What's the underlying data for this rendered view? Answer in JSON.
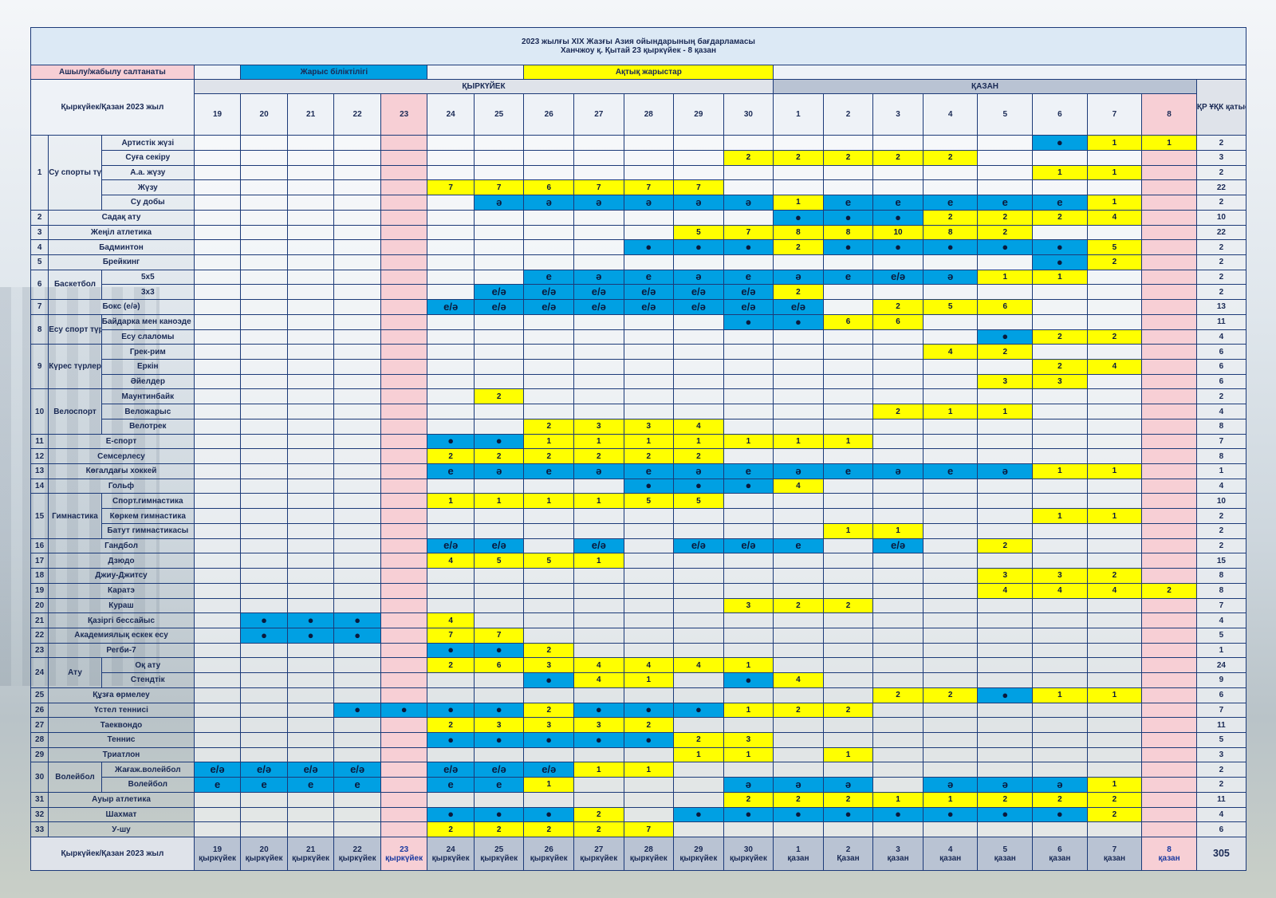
{
  "title_line1": "2023 жылғы XIX Жазғы Азия ойындарының бағдарламасы",
  "title_line2": "Ханчжоу қ. Қытай 23 қыркүйек - 8 қазан",
  "legend": {
    "ceremony": "Ашылу/жабылу салтанаты",
    "qualification": "Жарыс біліктілігі",
    "finals": "Ақтық жарыстар"
  },
  "months": {
    "sep": "ҚЫРКҮЙЕК",
    "oct": "ҚАЗАН"
  },
  "header_label": "Қыркүйек/Қазан 2023 жыл",
  "krq_header": "ҚР ҰҚК қатысу жоспары",
  "days": [
    "19",
    "20",
    "21",
    "22",
    "23",
    "24",
    "25",
    "26",
    "27",
    "28",
    "29",
    "30",
    "1",
    "2",
    "3",
    "4",
    "5",
    "6",
    "7",
    "8"
  ],
  "colors": {
    "qualification": "#00a0e3",
    "finals": "#ffff00",
    "ceremony": "#f7cfd5",
    "border": "#1c3a78",
    "month_text": "#e0101a"
  },
  "rows": [
    {
      "num": "1",
      "group": "Су спорты түрлері",
      "sub": "Артистік жүзі",
      "cells": {
        "17": "b:●",
        "18": "y:1",
        "19": "y:1"
      },
      "total": "2"
    },
    {
      "sub": "Суға секіру",
      "cells": {
        "11": "y:2",
        "12": "y:2",
        "13": "y:2",
        "14": "y:2",
        "15": "y:2"
      },
      "total": "3"
    },
    {
      "sub": "А.а. жүзу",
      "cells": {
        "17": "y:1",
        "18": "y:1"
      },
      "total": "2"
    },
    {
      "sub": "Жүзу",
      "cells": {
        "5": "y:7",
        "6": "y:7",
        "7": "y:6",
        "8": "y:7",
        "9": "y:7",
        "10": "y:7"
      },
      "total": "22"
    },
    {
      "sub": "Су добы",
      "cells": {
        "6": "b:ә",
        "7": "b:ә",
        "8": "b:ә",
        "9": "b:ә",
        "10": "b:ә",
        "11": "b:ә",
        "12": "y:1",
        "13": "b:е",
        "14": "b:е",
        "15": "b:е",
        "16": "b:е",
        "17": "b:е",
        "18": "y:1"
      },
      "total": "2"
    },
    {
      "num": "2",
      "name": "Садақ ату",
      "cells": {
        "12": "b:●",
        "13": "b:●",
        "14": "b:●",
        "15": "y:2",
        "16": "y:2",
        "17": "y:2",
        "18": "y:4"
      },
      "total": "10"
    },
    {
      "num": "3",
      "name": "Жеңіл атлетика",
      "cells": {
        "10": "y:5",
        "11": "y:7",
        "12": "y:8",
        "13": "y:8",
        "14": "y:10",
        "15": "y:8",
        "16": "y:2"
      },
      "total": "22"
    },
    {
      "num": "4",
      "name": "Бадминтон",
      "cells": {
        "9": "b:●",
        "10": "b:●",
        "11": "b:●",
        "12": "y:2",
        "13": "b:●",
        "14": "b:●",
        "15": "b:●",
        "16": "b:●",
        "17": "b:●",
        "18": "y:5"
      },
      "total": "2"
    },
    {
      "num": "5",
      "name": "Брейкинг",
      "cells": {
        "17": "b:●",
        "18": "y:2"
      },
      "total": "2"
    },
    {
      "num": "6",
      "group": "Баскетбол",
      "sub": "5х5",
      "cells": {
        "7": "b:е",
        "8": "b:ә",
        "9": "b:е",
        "10": "b:ә",
        "11": "b:е",
        "12": "b:ә",
        "13": "b:е",
        "14": "b:е/ә",
        "15": "b:ә",
        "16": "y:1",
        "17": "y:1"
      },
      "total": "2"
    },
    {
      "sub": "3х3",
      "cells": {
        "6": "b:е/ә",
        "7": "b:е/ә",
        "8": "b:е/ә",
        "9": "b:е/ә",
        "10": "b:е/ә",
        "11": "b:е/ә",
        "12": "y:2"
      },
      "total": "2"
    },
    {
      "num": "7",
      "name": "Бокс (е/ә)",
      "cells": {
        "5": "b:е/ә",
        "6": "b:е/ә",
        "7": "b:е/ә",
        "8": "b:е/ә",
        "9": "b:е/ә",
        "10": "b:е/ә",
        "11": "b:е/ә",
        "12": "b:е/ә",
        "14": "y:2",
        "15": "y:5",
        "16": "y:6"
      },
      "total": "13"
    },
    {
      "num": "8",
      "group": "Есу спорт түрлері",
      "sub": "Байдарка мен каноэде есу",
      "cells": {
        "11": "b:●",
        "12": "b:●",
        "13": "y:6",
        "14": "y:6"
      },
      "total": "11"
    },
    {
      "sub": "Есу слаломы",
      "cells": {
        "16": "b:●",
        "17": "y:2",
        "18": "y:2"
      },
      "total": "4"
    },
    {
      "num": "9",
      "group": "Күрес түрлері",
      "sub": "Грек-рим",
      "cells": {
        "15": "y:4",
        "16": "y:2"
      },
      "total": "6"
    },
    {
      "sub": "Еркін",
      "cells": {
        "17": "y:2",
        "18": "y:4"
      },
      "total": "6"
    },
    {
      "sub": "Әйелдер",
      "cells": {
        "16": "y:3",
        "17": "y:3"
      },
      "total": "6"
    },
    {
      "num": "10",
      "group": "Велоспорт",
      "sub": "Маунтинбайк",
      "cells": {
        "6": "y:2"
      },
      "total": "2"
    },
    {
      "sub": "Веложарыс",
      "cells": {
        "14": "y:2",
        "15": "y:1",
        "16": "y:1"
      },
      "total": "4"
    },
    {
      "sub": "Велотрек",
      "cells": {
        "7": "y:2",
        "8": "y:3",
        "9": "y:3",
        "10": "y:4"
      },
      "total": "8"
    },
    {
      "num": "11",
      "name": "Е-спорт",
      "cells": {
        "5": "b:●",
        "6": "b:●",
        "7": "y:1",
        "8": "y:1",
        "9": "y:1",
        "10": "y:1",
        "11": "y:1",
        "12": "y:1",
        "13": "y:1"
      },
      "total": "7"
    },
    {
      "num": "12",
      "name": "Семсерлесу",
      "cells": {
        "5": "y:2",
        "6": "y:2",
        "7": "y:2",
        "8": "y:2",
        "9": "y:2",
        "10": "y:2"
      },
      "total": "8"
    },
    {
      "num": "13",
      "name": "Көгалдағы хоккей",
      "cells": {
        "5": "b:е",
        "6": "b:ә",
        "7": "b:е",
        "8": "b:ә",
        "9": "b:е",
        "10": "b:ә",
        "11": "b:е",
        "12": "b:ә",
        "13": "b:е",
        "14": "b:ә",
        "15": "b:е",
        "16": "b:ә",
        "17": "y:1",
        "18": "y:1"
      },
      "total": "1"
    },
    {
      "num": "14",
      "name": "Гольф",
      "cells": {
        "9": "b:●",
        "10": "b:●",
        "11": "b:●",
        "12": "y:4"
      },
      "total": "4"
    },
    {
      "num": "15",
      "group": "Гимнастика",
      "sub": "Спорт.гимнастика",
      "cells": {
        "5": "y:1",
        "6": "y:1",
        "7": "y:1",
        "8": "y:1",
        "9": "y:5",
        "10": "y:5"
      },
      "total": "10"
    },
    {
      "sub": "Көркем гимнастика",
      "cells": {
        "17": "y:1",
        "18": "y:1"
      },
      "total": "2"
    },
    {
      "sub": "Батут гимнастикасы",
      "cells": {
        "13": "y:1",
        "14": "y:1"
      },
      "total": "2"
    },
    {
      "num": "16",
      "name": "Гандбол",
      "cells": {
        "5": "b:е/ә",
        "6": "b:е/ә",
        "8": "b:е/ә",
        "10": "b:е/ә",
        "11": "b:е/ә",
        "12": "b:е",
        "14": "b:е/ә",
        "16": "y:2"
      },
      "total": "2"
    },
    {
      "num": "17",
      "name": "Дзюдо",
      "cells": {
        "5": "y:4",
        "6": "y:5",
        "7": "y:5",
        "8": "y:1"
      },
      "total": "15"
    },
    {
      "num": "18",
      "name": "Джиу-Джитсу",
      "cells": {
        "16": "y:3",
        "17": "y:3",
        "18": "y:2"
      },
      "total": "8"
    },
    {
      "num": "19",
      "name": "Каратэ",
      "cells": {
        "16": "y:4",
        "17": "y:4",
        "18": "y:4",
        "19": "y:2"
      },
      "total": "8"
    },
    {
      "num": "20",
      "name": "Кураш",
      "cells": {
        "11": "y:3",
        "12": "y:2",
        "13": "y:2"
      },
      "total": "7"
    },
    {
      "num": "21",
      "name": "Қазіргі бессайыс",
      "cells": {
        "1": "b:●",
        "2": "b:●",
        "3": "b:●",
        "5": "y:4"
      },
      "total": "4"
    },
    {
      "num": "22",
      "name": "Академиялық ескек есу",
      "cells": {
        "1": "b:●",
        "2": "b:●",
        "3": "b:●",
        "5": "y:7",
        "6": "y:7"
      },
      "total": "5"
    },
    {
      "num": "23",
      "name": "Регби-7",
      "cells": {
        "5": "b:●",
        "6": "b:●",
        "7": "y:2"
      },
      "total": "1"
    },
    {
      "num": "24",
      "group": "Ату",
      "sub": "Оқ ату",
      "cells": {
        "5": "y:2",
        "6": "y:6",
        "7": "y:3",
        "8": "y:4",
        "9": "y:4",
        "10": "y:4",
        "11": "y:1"
      },
      "total": "24"
    },
    {
      "sub": "Стендтік",
      "cells": {
        "7": "b:●",
        "8": "y:4",
        "9": "y:1",
        "11": "b:●",
        "12": "y:4"
      },
      "total": "9"
    },
    {
      "num": "25",
      "name": "Құзға өрмелеу",
      "cells": {
        "14": "y:2",
        "15": "y:2",
        "16": "b:●",
        "17": "y:1",
        "18": "y:1"
      },
      "total": "6"
    },
    {
      "num": "26",
      "name": "Үстел теннисі",
      "cells": {
        "3": "b:●",
        "4": "b:●",
        "5": "b:●",
        "6": "b:●",
        "7": "y:2",
        "8": "b:●",
        "9": "b:●",
        "10": "b:●",
        "11": "y:1",
        "12": "y:2",
        "13": "y:2"
      },
      "total": "7"
    },
    {
      "num": "27",
      "name": "Таеквондо",
      "cells": {
        "5": "y:2",
        "6": "y:3",
        "7": "y:3",
        "8": "y:3",
        "9": "y:2"
      },
      "total": "11"
    },
    {
      "num": "28",
      "name": "Теннис",
      "cells": {
        "5": "b:●",
        "6": "b:●",
        "7": "b:●",
        "8": "b:●",
        "9": "b:●",
        "10": "y:2",
        "11": "y:3"
      },
      "total": "5"
    },
    {
      "num": "29",
      "name": "Триатлон",
      "cells": {
        "10": "y:1",
        "11": "y:1",
        "13": "y:1"
      },
      "total": "3"
    },
    {
      "num": "30",
      "group": "Волейбол",
      "sub": "Жағаж.волейбол",
      "cells": {
        "0": "b:е/ә",
        "1": "b:е/ә",
        "2": "b:е/ә",
        "3": "b:е/ә",
        "5": "b:е/ә",
        "6": "b:е/ә",
        "7": "b:е/ә",
        "8": "y:1",
        "9": "y:1"
      },
      "total": "2"
    },
    {
      "sub": "Волейбол",
      "cells": {
        "0": "b:е",
        "1": "b:е",
        "2": "b:е",
        "3": "b:е",
        "5": "b:е",
        "6": "b:е",
        "7": "y:1",
        "11": "b:ә",
        "12": "b:ә",
        "13": "b:ә",
        "15": "b:ә",
        "16": "b:ә",
        "17": "b:ә",
        "18": "y:1"
      },
      "total": "2"
    },
    {
      "num": "31",
      "name": "Ауыр атлетика",
      "cells": {
        "11": "y:2",
        "12": "y:2",
        "13": "y:2",
        "14": "y:1",
        "15": "y:1",
        "16": "y:2",
        "17": "y:2",
        "18": "y:2"
      },
      "total": "11"
    },
    {
      "num": "32",
      "name": "Шахмат",
      "cells": {
        "5": "b:●",
        "6": "b:●",
        "7": "b:●",
        "8": "y:2",
        "10": "b:●",
        "11": "b:●",
        "12": "b:●",
        "13": "b:●",
        "14": "b:●",
        "15": "b:●",
        "16": "b:●",
        "17": "b:●",
        "18": "y:2"
      },
      "total": "4"
    },
    {
      "num": "33",
      "name": "У-шу",
      "cells": {
        "5": "y:2",
        "6": "y:2",
        "7": "y:2",
        "8": "y:2",
        "9": "y:7"
      },
      "total": "6"
    }
  ],
  "footer": {
    "label": "Қыркүйек/Қазан 2023 жыл",
    "dates": [
      {
        "day": "19",
        "month": "қыркүйек"
      },
      {
        "day": "20",
        "month": "қыркүйек"
      },
      {
        "day": "21",
        "month": "қыркүйек"
      },
      {
        "day": "22",
        "month": "қыркүйек"
      },
      {
        "day": "23",
        "month": "қыркүйек"
      },
      {
        "day": "24",
        "month": "қыркүйек"
      },
      {
        "day": "25",
        "month": "қыркүйек"
      },
      {
        "day": "26",
        "month": "қыркүйек"
      },
      {
        "day": "27",
        "month": "қыркүйек"
      },
      {
        "day": "28",
        "month": "қыркүйек"
      },
      {
        "day": "29",
        "month": "қыркүйек"
      },
      {
        "day": "30",
        "month": "қыркүйек"
      },
      {
        "day": "1",
        "month": "қазан"
      },
      {
        "day": "2",
        "month": "Қазан"
      },
      {
        "day": "3",
        "month": "қазан"
      },
      {
        "day": "4",
        "month": "қазан"
      },
      {
        "day": "5",
        "month": "қазан"
      },
      {
        "day": "6",
        "month": "қазан"
      },
      {
        "day": "7",
        "month": "қазан"
      },
      {
        "day": "8",
        "month": "қазан"
      }
    ],
    "total": "305"
  }
}
